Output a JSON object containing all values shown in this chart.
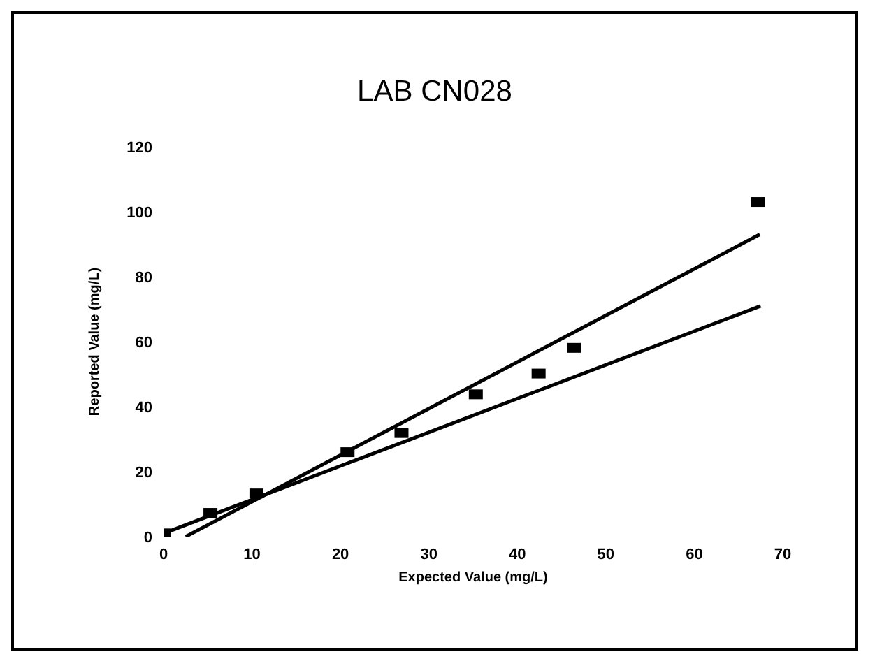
{
  "chart_data": {
    "type": "scatter",
    "title": "LAB CN028",
    "xlabel": "Expected Value (mg/L)",
    "ylabel": "Reported Value (mg/L)",
    "xlim": [
      0,
      70
    ],
    "xticks": [
      0,
      10,
      20,
      30,
      40,
      50,
      60,
      70
    ],
    "ylim": [
      0,
      120
    ],
    "yticks": [
      0,
      20,
      40,
      60,
      80,
      100,
      120
    ],
    "grid": false,
    "legend": false,
    "series": [
      {
        "color": "#000000",
        "marker": "square",
        "x": [
          0,
          5.3,
          10.5,
          20.8,
          26.9,
          35.3,
          42.4,
          46.4,
          67.2
        ],
        "values": [
          1,
          7.3,
          13.3,
          26,
          31.9,
          43.8,
          50.2,
          58.1,
          103
        ]
      },
      {
        "type": "line",
        "color": "#000000",
        "marker": "none",
        "line_style": "solid",
        "x": [
          2.5,
          67.4
        ],
        "values": [
          0,
          93
        ]
      },
      {
        "type": "line",
        "color": "#000000",
        "marker": "none",
        "line_style": "solid",
        "x": [
          0,
          67.5
        ],
        "values": [
          1,
          71
        ]
      }
    ]
  }
}
